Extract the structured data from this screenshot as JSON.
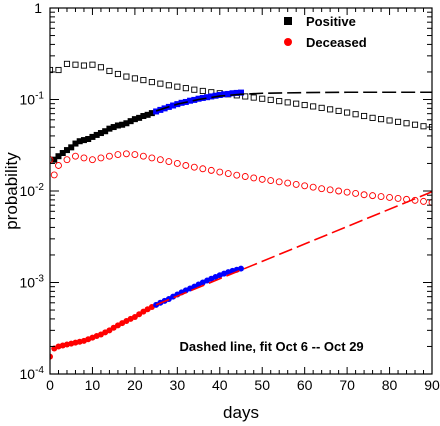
{
  "chart_data": {
    "type": "scatter",
    "xlabel": "days",
    "ylabel": "probability",
    "xlim": [
      0,
      90
    ],
    "ylim": [
      0.0001,
      1
    ],
    "yscale": "log",
    "grid": false,
    "legend_position": "top-right",
    "annotation": "Dashed line, fit Oct 6 -- Oct 29",
    "x_ticks": [
      "0",
      "10",
      "20",
      "30",
      "40",
      "50",
      "60",
      "70",
      "80",
      "90"
    ],
    "y_ticks": [
      {
        "base": "10",
        "exp": "-4",
        "value": 0.0001
      },
      {
        "base": "10",
        "exp": "-3",
        "value": 0.001
      },
      {
        "base": "10",
        "exp": "-2",
        "value": 0.01
      },
      {
        "base": "10",
        "exp": "-1",
        "value": 0.1
      },
      {
        "base": "1",
        "exp": "",
        "value": 1
      }
    ],
    "legend": [
      {
        "label": "Positive",
        "marker": "square",
        "color": "#000000"
      },
      {
        "label": "Deceased",
        "marker": "circle",
        "color": "#ff0000"
      }
    ],
    "series": [
      {
        "name": "Positive",
        "role": "open-ratio",
        "marker": "square-open",
        "color": "#000000",
        "points": [
          [
            0,
            0.21
          ],
          [
            2,
            0.21
          ],
          [
            4,
            0.245
          ],
          [
            6,
            0.24
          ],
          [
            8,
            0.235
          ],
          [
            10,
            0.24
          ],
          [
            12,
            0.225
          ],
          [
            14,
            0.205
          ],
          [
            16,
            0.19
          ],
          [
            18,
            0.178
          ],
          [
            20,
            0.17
          ],
          [
            22,
            0.163
          ],
          [
            24,
            0.155
          ],
          [
            26,
            0.149
          ],
          [
            28,
            0.143
          ],
          [
            30,
            0.138
          ],
          [
            32,
            0.133
          ],
          [
            34,
            0.128
          ],
          [
            36,
            0.124
          ],
          [
            38,
            0.12
          ],
          [
            40,
            0.117
          ],
          [
            42,
            0.114
          ],
          [
            44,
            0.111
          ],
          [
            46,
            0.108
          ],
          [
            48,
            0.105
          ],
          [
            50,
            0.102
          ],
          [
            52,
            0.099
          ],
          [
            54,
            0.096
          ],
          [
            56,
            0.093
          ],
          [
            58,
            0.09
          ],
          [
            60,
            0.087
          ],
          [
            62,
            0.084
          ],
          [
            64,
            0.081
          ],
          [
            66,
            0.078
          ],
          [
            68,
            0.075
          ],
          [
            70,
            0.072
          ],
          [
            72,
            0.069
          ],
          [
            74,
            0.066
          ],
          [
            76,
            0.063
          ],
          [
            78,
            0.061
          ],
          [
            80,
            0.059
          ],
          [
            82,
            0.057
          ],
          [
            84,
            0.055
          ],
          [
            86,
            0.053
          ],
          [
            88,
            0.051
          ],
          [
            90,
            0.05
          ]
        ]
      },
      {
        "name": "Positive",
        "role": "filled",
        "marker": "square",
        "color": "#000000",
        "points": [
          [
            1,
            0.022
          ],
          [
            2,
            0.024
          ],
          [
            3,
            0.026
          ],
          [
            4,
            0.028
          ],
          [
            5,
            0.03
          ],
          [
            6,
            0.033
          ],
          [
            7,
            0.035
          ],
          [
            8,
            0.036
          ],
          [
            9,
            0.037
          ],
          [
            10,
            0.039
          ],
          [
            11,
            0.041
          ],
          [
            12,
            0.043
          ],
          [
            13,
            0.045
          ],
          [
            14,
            0.048
          ],
          [
            15,
            0.05
          ],
          [
            16,
            0.052
          ],
          [
            17,
            0.053
          ],
          [
            18,
            0.055
          ],
          [
            19,
            0.058
          ],
          [
            20,
            0.061
          ],
          [
            21,
            0.063
          ],
          [
            22,
            0.066
          ],
          [
            23,
            0.068
          ],
          [
            24,
            0.071
          ]
        ]
      },
      {
        "name": "Positive",
        "role": "fit-range",
        "marker": "square",
        "color": "#0000ff",
        "points": [
          [
            25,
            0.074
          ],
          [
            26,
            0.077
          ],
          [
            27,
            0.08
          ],
          [
            28,
            0.083
          ],
          [
            29,
            0.086
          ],
          [
            30,
            0.089
          ],
          [
            31,
            0.092
          ],
          [
            32,
            0.094
          ],
          [
            33,
            0.097
          ],
          [
            34,
            0.099
          ],
          [
            35,
            0.102
          ],
          [
            36,
            0.104
          ],
          [
            37,
            0.106
          ],
          [
            38,
            0.108
          ],
          [
            39,
            0.11
          ],
          [
            40,
            0.112
          ],
          [
            41,
            0.114
          ],
          [
            42,
            0.115
          ],
          [
            43,
            0.117
          ],
          [
            44,
            0.118
          ],
          [
            45,
            0.119
          ]
        ]
      },
      {
        "name": "Deceased",
        "role": "open-ratio",
        "marker": "circle-open",
        "color": "#ff0000",
        "points": [
          [
            0,
            0.022
          ],
          [
            1,
            0.015
          ],
          [
            2,
            0.019
          ],
          [
            4,
            0.022
          ],
          [
            6,
            0.024
          ],
          [
            8,
            0.023
          ],
          [
            10,
            0.022
          ],
          [
            12,
            0.023
          ],
          [
            14,
            0.024
          ],
          [
            16,
            0.025
          ],
          [
            18,
            0.0255
          ],
          [
            20,
            0.025
          ],
          [
            22,
            0.024
          ],
          [
            24,
            0.023
          ],
          [
            26,
            0.022
          ],
          [
            28,
            0.021
          ],
          [
            30,
            0.02
          ],
          [
            32,
            0.019
          ],
          [
            34,
            0.0182
          ],
          [
            36,
            0.0175
          ],
          [
            38,
            0.0168
          ],
          [
            40,
            0.0161
          ],
          [
            42,
            0.0155
          ],
          [
            44,
            0.0149
          ],
          [
            46,
            0.0144
          ],
          [
            48,
            0.0139
          ],
          [
            50,
            0.0134
          ],
          [
            52,
            0.013
          ],
          [
            54,
            0.0126
          ],
          [
            56,
            0.0122
          ],
          [
            58,
            0.0118
          ],
          [
            60,
            0.0114
          ],
          [
            62,
            0.011
          ],
          [
            64,
            0.0106
          ],
          [
            66,
            0.0103
          ],
          [
            68,
            0.01
          ],
          [
            70,
            0.0097
          ],
          [
            72,
            0.0094
          ],
          [
            74,
            0.0091
          ],
          [
            76,
            0.0089
          ],
          [
            78,
            0.0087
          ],
          [
            80,
            0.0085
          ],
          [
            82,
            0.0083
          ],
          [
            84,
            0.0081
          ],
          [
            86,
            0.0079
          ],
          [
            88,
            0.0077
          ],
          [
            90,
            0.0075
          ]
        ]
      },
      {
        "name": "Deceased",
        "role": "filled",
        "marker": "circle",
        "color": "#ff0000",
        "points": [
          [
            0,
            0.000155
          ],
          [
            1,
            0.00019
          ],
          [
            2,
            0.0002
          ],
          [
            3,
            0.000205
          ],
          [
            4,
            0.00021
          ],
          [
            5,
            0.000215
          ],
          [
            6,
            0.00022
          ],
          [
            7,
            0.000225
          ],
          [
            8,
            0.00023
          ],
          [
            9,
            0.00024
          ],
          [
            10,
            0.00025
          ],
          [
            11,
            0.00026
          ],
          [
            12,
            0.00027
          ],
          [
            13,
            0.000285
          ],
          [
            14,
            0.0003
          ],
          [
            15,
            0.00032
          ],
          [
            16,
            0.00034
          ],
          [
            17,
            0.00036
          ],
          [
            18,
            0.00038
          ],
          [
            19,
            0.0004
          ],
          [
            20,
            0.00042
          ],
          [
            21,
            0.00045
          ],
          [
            22,
            0.00048
          ],
          [
            23,
            0.00051
          ],
          [
            24,
            0.00054
          ]
        ]
      },
      {
        "name": "Deceased",
        "role": "fit-range",
        "marker": "circle",
        "color": "#0000ff",
        "points": [
          [
            25,
            0.00057
          ],
          [
            26,
            0.0006
          ],
          [
            27,
            0.00063
          ],
          [
            28,
            0.00066
          ],
          [
            29,
            0.0007
          ],
          [
            30,
            0.00074
          ],
          [
            31,
            0.00078
          ],
          [
            32,
            0.00082
          ],
          [
            33,
            0.00086
          ],
          [
            34,
            0.0009
          ],
          [
            35,
            0.00095
          ],
          [
            36,
            0.001
          ],
          [
            37,
            0.00105
          ],
          [
            38,
            0.0011
          ],
          [
            39,
            0.00115
          ],
          [
            40,
            0.0012
          ],
          [
            41,
            0.00125
          ],
          [
            42,
            0.0013
          ],
          [
            43,
            0.00134
          ],
          [
            44,
            0.00138
          ],
          [
            45,
            0.00142
          ]
        ]
      },
      {
        "name": "Positive",
        "role": "fit-line",
        "style": "dashed",
        "color": "#000000",
        "points": [
          [
            25,
            0.075
          ],
          [
            30,
            0.089
          ],
          [
            35,
            0.1
          ],
          [
            40,
            0.109
          ],
          [
            45,
            0.114
          ],
          [
            50,
            0.117
          ],
          [
            60,
            0.119
          ],
          [
            70,
            0.12
          ],
          [
            80,
            0.12
          ],
          [
            90,
            0.12
          ]
        ]
      },
      {
        "name": "Deceased",
        "role": "fit-line",
        "style": "dashed",
        "color": "#ff0000",
        "points": [
          [
            25,
            0.00057
          ],
          [
            90,
            0.0098
          ]
        ]
      }
    ]
  }
}
